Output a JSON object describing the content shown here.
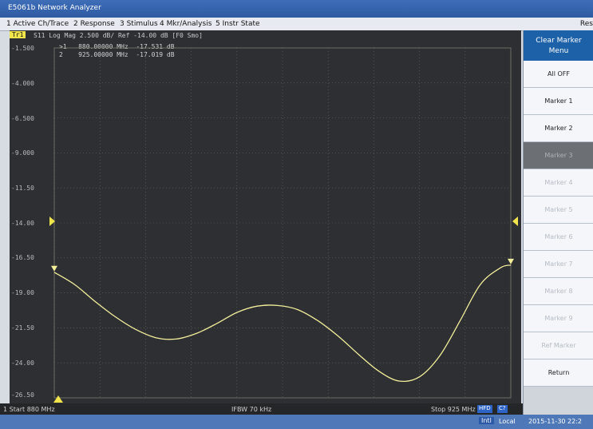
{
  "window": {
    "title": "E5061b Network Analyzer"
  },
  "menubar": {
    "items": [
      "1 Active Ch/Trace",
      "2 Response",
      "3 Stimulus",
      "4 Mkr/Analysis",
      "5 Instr State"
    ],
    "right_text": "Res"
  },
  "trace_header": {
    "trace_id": "Tr1",
    "text": "S11 Log Mag 2.500 dB/ Ref -14.00 dB [F0 Smo]"
  },
  "markers": [
    {
      "label": ">1",
      "freq": "880.00000 MHz",
      "value": "-17.531 dB"
    },
    {
      "label": "2",
      "freq": "925.00000 MHz",
      "value": "-17.019 dB"
    }
  ],
  "y_ticks": [
    "-1.500",
    "-4.000",
    "-6.500",
    "-9.000",
    "-11.50",
    "-14.00",
    "-16.50",
    "-19.00",
    "-21.50",
    "-24.00",
    "-26.50"
  ],
  "ref_line_value": -14.0,
  "trace": {
    "color": "#f3ee9a",
    "x_mhz": [
      880,
      882,
      884,
      886,
      888,
      890,
      892,
      894,
      896,
      898,
      900,
      902,
      904,
      906,
      908,
      910,
      912,
      914,
      916,
      918,
      920,
      922,
      924,
      925
    ],
    "y_db": [
      -17.53,
      -18.4,
      -19.6,
      -20.7,
      -21.6,
      -22.2,
      -22.3,
      -21.9,
      -21.2,
      -20.4,
      -19.95,
      -19.9,
      -20.2,
      -21.0,
      -22.1,
      -23.4,
      -24.6,
      -25.3,
      -25.0,
      -23.5,
      -21.0,
      -18.4,
      -17.2,
      -17.02
    ]
  },
  "chart_data": {
    "type": "line",
    "title": "S11 Log Mag",
    "xlabel": "",
    "ylabel": "",
    "xlim": [
      880,
      925
    ],
    "ylim": [
      -26.5,
      -1.5
    ],
    "series": [
      {
        "name": "S11",
        "x": [
          880,
          882,
          884,
          886,
          888,
          890,
          892,
          894,
          896,
          898,
          900,
          902,
          904,
          906,
          908,
          910,
          912,
          914,
          916,
          918,
          920,
          922,
          924,
          925
        ],
        "y": [
          -17.53,
          -18.4,
          -19.6,
          -20.7,
          -21.6,
          -22.2,
          -22.3,
          -21.9,
          -21.2,
          -20.4,
          -19.95,
          -19.9,
          -20.2,
          -21.0,
          -22.1,
          -23.4,
          -24.6,
          -25.3,
          -25.0,
          -23.5,
          -21.0,
          -18.4,
          -17.2,
          -17.02
        ]
      }
    ],
    "grid": true
  },
  "status": {
    "start": "1  Start 880 MHz",
    "ifbw": "IFBW 70 kHz",
    "stop": "Stop 925 MHz",
    "tags": [
      "HFD",
      "C?"
    ]
  },
  "softkeys": {
    "title_line1": "Clear Marker",
    "title_line2": "Menu",
    "items": [
      {
        "label": "All OFF",
        "state": "normal"
      },
      {
        "label": "Marker 1",
        "state": "normal"
      },
      {
        "label": "Marker 2",
        "state": "normal"
      },
      {
        "label": "Marker 3",
        "state": "selected"
      },
      {
        "label": "Marker 4",
        "state": "disabled"
      },
      {
        "label": "Marker 5",
        "state": "disabled"
      },
      {
        "label": "Marker 6",
        "state": "disabled"
      },
      {
        "label": "Marker 7",
        "state": "disabled"
      },
      {
        "label": "Marker 8",
        "state": "disabled"
      },
      {
        "label": "Marker 9",
        "state": "disabled"
      },
      {
        "label": "Ref Marker",
        "state": "disabled"
      },
      {
        "label": "Return",
        "state": "normal"
      }
    ]
  },
  "taskbar": {
    "tag": "Intl",
    "text": "Local",
    "datetime": "2015-11-30 22:2"
  }
}
